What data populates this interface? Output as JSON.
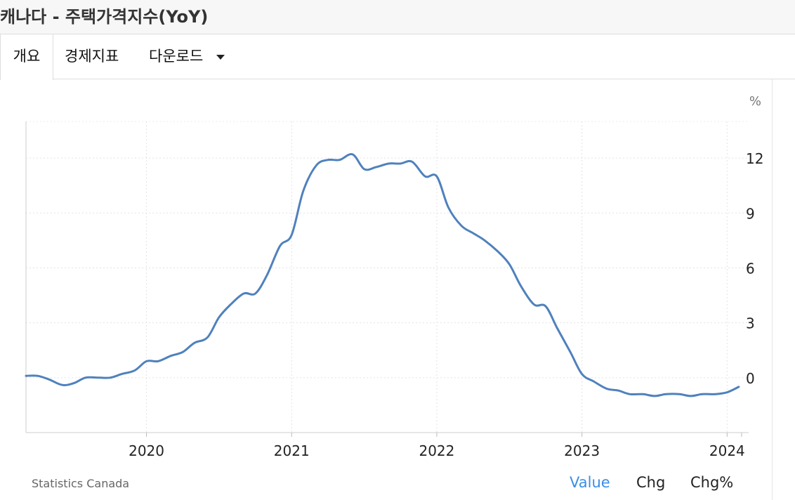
{
  "header": {
    "title": "캐나다 - 주택가격지수(YoY)"
  },
  "nav": {
    "tabs": [
      {
        "label": "개요",
        "active": true
      },
      {
        "label": "경제지표",
        "active": false
      },
      {
        "label": "다운로드",
        "active": false,
        "dropdown": true
      }
    ]
  },
  "footer": {
    "source": "Statistics Canada",
    "modes": [
      {
        "label": "Value",
        "active": true
      },
      {
        "label": "Chg",
        "active": false
      },
      {
        "label": "Chg%",
        "active": false
      }
    ]
  },
  "colors": {
    "line": "#4f81bd",
    "grid": "#e3e3e3",
    "active_mode": "#3a8ee6"
  },
  "chart_data": {
    "type": "line",
    "unit": "%",
    "xlabels": [
      "2020",
      "2021",
      "2022",
      "2023",
      "2024"
    ],
    "ylabels": [
      "0",
      "3",
      "6",
      "9",
      "12"
    ],
    "yticks": [
      0,
      3,
      6,
      9,
      12
    ],
    "xlim": [
      2019.17,
      2024.1
    ],
    "ylim": [
      -3,
      14
    ],
    "grid": true,
    "series": [
      {
        "x": [
          2019.17,
          2019.25,
          2019.33,
          2019.42,
          2019.5,
          2019.58,
          2019.67,
          2019.75,
          2019.83,
          2019.92,
          2020.0,
          2020.08,
          2020.17,
          2020.25,
          2020.33,
          2020.42,
          2020.5,
          2020.58,
          2020.67,
          2020.75,
          2020.83,
          2020.92,
          2021.0,
          2021.08,
          2021.17,
          2021.25,
          2021.33,
          2021.42,
          2021.5,
          2021.58,
          2021.67,
          2021.75,
          2021.83,
          2021.92,
          2022.0,
          2022.08,
          2022.17,
          2022.25,
          2022.33,
          2022.42,
          2022.5,
          2022.58,
          2022.67,
          2022.75,
          2022.83,
          2022.92,
          2023.0,
          2023.08,
          2023.17,
          2023.25,
          2023.33,
          2023.42,
          2023.5,
          2023.58,
          2023.67,
          2023.75,
          2023.83,
          2023.92,
          2024.0,
          2024.08
        ],
        "values": [
          0.1,
          0.1,
          -0.1,
          -0.4,
          -0.3,
          0.0,
          0.0,
          0.0,
          0.2,
          0.4,
          0.9,
          0.9,
          1.2,
          1.4,
          1.9,
          2.2,
          3.3,
          4.0,
          4.6,
          4.6,
          5.6,
          7.2,
          7.8,
          10.2,
          11.6,
          11.9,
          11.9,
          12.2,
          11.4,
          11.5,
          11.7,
          11.7,
          11.8,
          11.0,
          11.0,
          9.3,
          8.3,
          7.9,
          7.5,
          6.9,
          6.2,
          5.0,
          4.0,
          3.9,
          2.7,
          1.4,
          0.2,
          -0.2,
          -0.6,
          -0.7,
          -0.9,
          -0.9,
          -1.0,
          -0.9,
          -0.9,
          -1.0,
          -0.9,
          -0.9,
          -0.8,
          -0.5
        ]
      }
    ]
  }
}
